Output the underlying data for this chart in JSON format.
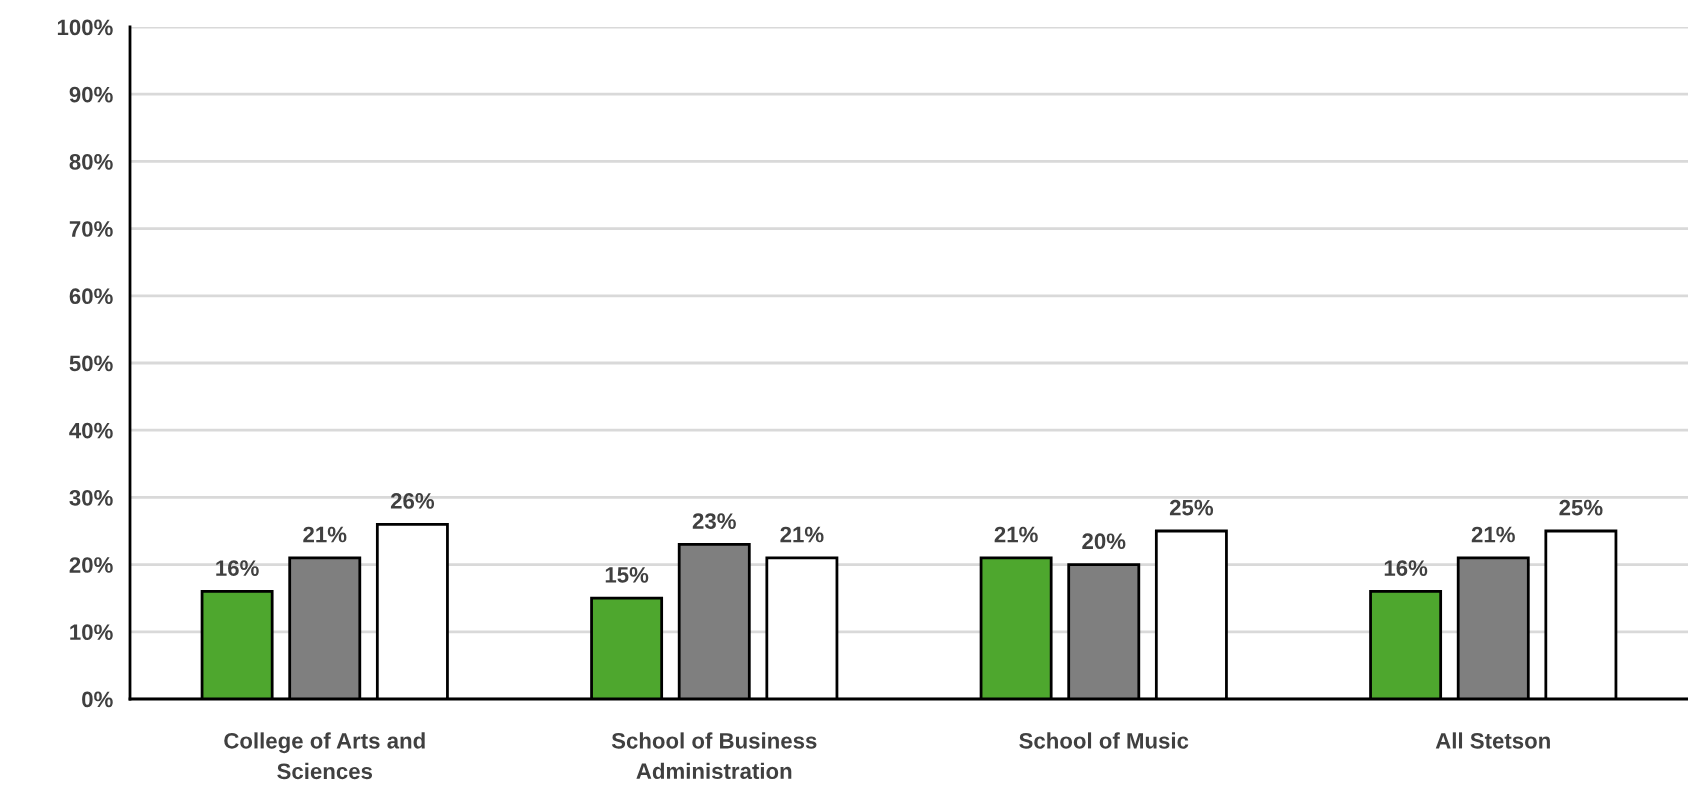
{
  "chart_data": {
    "type": "bar",
    "categories": [
      "College of Arts and\nSciences",
      "School of Business\nAdministration",
      "School of Music",
      "All Stetson"
    ],
    "series": [
      {
        "color": "#4ea72e",
        "values": [
          16,
          15,
          21,
          16
        ],
        "value_labels": [
          "16%",
          "15%",
          "21%",
          "16%"
        ]
      },
      {
        "color": "#7f7f7f",
        "values": [
          21,
          23,
          20,
          21
        ],
        "value_labels": [
          "21%",
          "23%",
          "20%",
          "21%"
        ]
      },
      {
        "color": "#ffffff",
        "values": [
          26,
          21,
          25,
          25
        ],
        "value_labels": [
          "26%",
          "21%",
          "25%",
          "25%"
        ]
      }
    ],
    "ylim": [
      0,
      100
    ],
    "yticks": [
      {
        "value": 0,
        "label": "0%"
      },
      {
        "value": 10,
        "label": "10%"
      },
      {
        "value": 20,
        "label": "20%"
      },
      {
        "value": 30,
        "label": "30%"
      },
      {
        "value": 40,
        "label": "40%"
      },
      {
        "value": 50,
        "label": "50%"
      },
      {
        "value": 60,
        "label": "60%"
      },
      {
        "value": 70,
        "label": "70%"
      },
      {
        "value": 80,
        "label": "80%"
      },
      {
        "value": 90,
        "label": "90%"
      },
      {
        "value": 100,
        "label": "100%"
      }
    ],
    "grid": "y"
  }
}
